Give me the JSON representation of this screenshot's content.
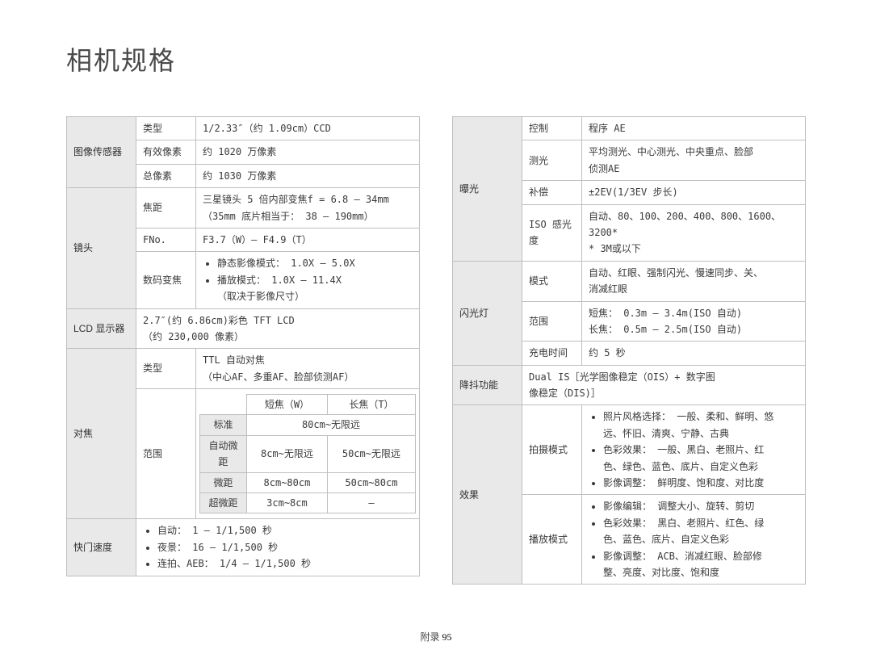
{
  "title": "相机规格",
  "footer": {
    "label": "附录",
    "page": "95"
  },
  "left": {
    "sensor": {
      "cat": "图像传感器",
      "rows": [
        {
          "lbl": "类型",
          "val": "1/2.33″（约 1.09cm）CCD"
        },
        {
          "lbl": "有效像素",
          "val": "约 1020 万像素"
        },
        {
          "lbl": "总像素",
          "val": "约 1030 万像素"
        }
      ]
    },
    "lens": {
      "cat": "镜头",
      "rows": [
        {
          "lbl": "焦距",
          "val": "三星镜头 5 倍内部变焦f = 6.8 – 34mm\n（35mm 底片相当于： 38 – 190mm）"
        },
        {
          "lbl": "FNo.",
          "val": "F3.7（W）– F4.9（T）"
        },
        {
          "lbl": "数码变焦",
          "bullets": [
            "静态影像模式： 1.0X – 5.0X",
            "播放模式： 1.0X – 11.4X\n（取决于影像尺寸）"
          ]
        }
      ]
    },
    "lcd": {
      "cat": "LCD 显示器",
      "val": "2.7″(约 6.86cm)彩色 TFT LCD\n（约 230,000 像素）"
    },
    "focus": {
      "cat": "对焦",
      "typeLbl": "类型",
      "typeVal": "TTL 自动对焦\n（中心AF、多重AF、脸部侦测AF）",
      "rangeLbl": "范围",
      "table": {
        "head": [
          "",
          "短焦（W）",
          "长焦（T）"
        ],
        "rows": [
          {
            "hdr": "标准",
            "w": "80cm~无限远",
            "t": "",
            "wspan": true
          },
          {
            "hdr": "自动微距",
            "w": "8cm~无限远",
            "t": "50cm~无限远"
          },
          {
            "hdr": "微距",
            "w": "8cm~80cm",
            "t": "50cm~80cm"
          },
          {
            "hdr": "超微距",
            "w": "3cm~8cm",
            "t": "–"
          }
        ]
      }
    },
    "shutter": {
      "cat": "快门速度",
      "bullets": [
        "自动： 1 – 1/1,500 秒",
        "夜景： 16 – 1/1,500 秒",
        "连拍、AEB： 1/4 – 1/1,500 秒"
      ]
    }
  },
  "right": {
    "exposure": {
      "cat": "曝光",
      "rows": [
        {
          "lbl": "控制",
          "val": "程序 AE"
        },
        {
          "lbl": "测光",
          "val": "平均测光、中心测光、中央重点、脸部\n侦测AE"
        },
        {
          "lbl": "补偿",
          "val": "±2EV(1/3EV 步长)"
        },
        {
          "lbl": "ISO 感光度",
          "val": "自动、80、100、200、400、800、1600、\n3200*\n* 3M或以下"
        }
      ]
    },
    "flash": {
      "cat": "闪光灯",
      "rows": [
        {
          "lbl": "模式",
          "val": "自动、红眼、强制闪光、慢速同步、关、\n消减红眼"
        },
        {
          "lbl": "范围",
          "val": "短焦： 0.3m – 3.4m(ISO 自动)\n长焦： 0.5m – 2.5m(ISO 自动)"
        },
        {
          "lbl": "充电时间",
          "val": "约 5 秒"
        }
      ]
    },
    "stabilize": {
      "cat": "降抖功能",
      "val": "Dual IS［光学图像稳定（OIS）+ 数字图\n像稳定（DIS)］"
    },
    "effect": {
      "cat": "效果",
      "rows": [
        {
          "lbl": "拍摄模式",
          "bullets": [
            "照片风格选择： 一般、柔和、鲜明、悠\n远、怀旧、清爽、宁静、古典",
            "色彩效果： 一般、黑白、老照片、红\n色、绿色、蓝色、底片、自定义色彩",
            "影像调整： 鲜明度、饱和度、对比度"
          ]
        },
        {
          "lbl": "播放模式",
          "bullets": [
            "影像编辑： 调整大小、旋转、剪切",
            "色彩效果： 黑白、老照片、红色、绿\n色、蓝色、底片、自定义色彩",
            "影像调整： ACB、消减红眼、脸部修\n整、亮度、对比度、饱和度"
          ]
        }
      ]
    }
  }
}
